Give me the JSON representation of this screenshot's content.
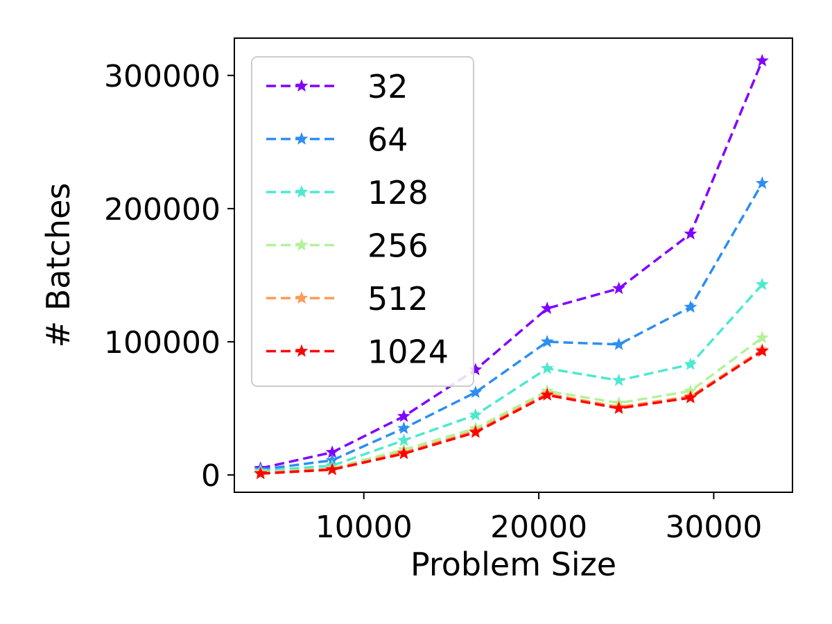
{
  "chart_data": {
    "type": "line",
    "title": "",
    "xlabel": "Problem Size",
    "ylabel": "# Batches",
    "xlim": [
      2600,
      34500
    ],
    "ylim": [
      -13000,
      328000
    ],
    "xticks": [
      10000,
      20000,
      30000
    ],
    "xtick_labels": [
      "10000",
      "20000",
      "30000"
    ],
    "yticks": [
      0,
      100000,
      200000,
      300000
    ],
    "ytick_labels": [
      "0",
      "100000",
      "200000",
      "300000"
    ],
    "grid": false,
    "legend": "top-left",
    "line_style": "dashed",
    "marker": "star",
    "x": [
      4096,
      8192,
      12288,
      16384,
      20480,
      24576,
      28672,
      32768
    ],
    "series": [
      {
        "name": "32",
        "color": "#8000ff",
        "values": [
          5000,
          17000,
          44000,
          79000,
          125000,
          140000,
          181000,
          311000
        ]
      },
      {
        "name": "64",
        "color": "#2c8ef2",
        "values": [
          4000,
          11000,
          35000,
          62000,
          100000,
          98000,
          126000,
          219000
        ]
      },
      {
        "name": "128",
        "color": "#4de8d0",
        "values": [
          3000,
          7000,
          26000,
          45000,
          80000,
          71000,
          83000,
          143000
        ]
      },
      {
        "name": "256",
        "color": "#b2f29a",
        "values": [
          2000,
          5000,
          19000,
          35000,
          63000,
          54000,
          63000,
          103000
        ]
      },
      {
        "name": "512",
        "color": "#ff9a55",
        "values": [
          1500,
          4500,
          17000,
          33000,
          61000,
          51000,
          59000,
          94000
        ]
      },
      {
        "name": "1024",
        "color": "#ff0000",
        "values": [
          1000,
          4000,
          16000,
          32000,
          60000,
          50000,
          58000,
          93000
        ]
      }
    ]
  }
}
